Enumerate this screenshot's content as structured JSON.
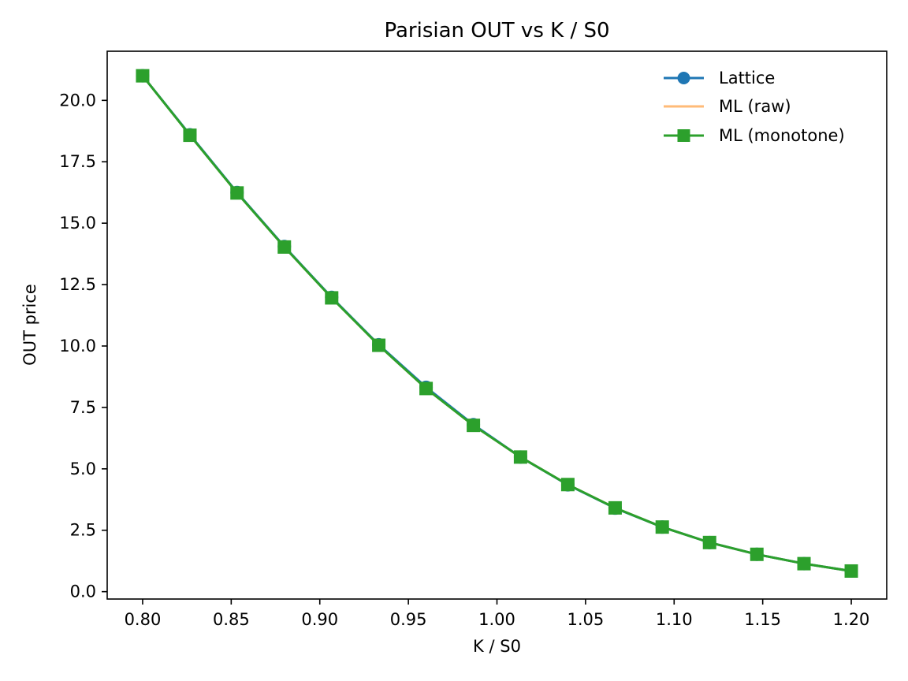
{
  "chart_data": {
    "type": "line",
    "title": "Parisian OUT vs K / S0",
    "xlabel": "K / S0",
    "ylabel": "OUT price",
    "xlim": [
      0.78,
      1.22
    ],
    "ylim": [
      -0.3,
      22.0
    ],
    "xticks": [
      0.8,
      0.85,
      0.9,
      0.95,
      1.0,
      1.05,
      1.1,
      1.15,
      1.2
    ],
    "xtick_labels": [
      "0.80",
      "0.85",
      "0.90",
      "0.95",
      "1.00",
      "1.05",
      "1.10",
      "1.15",
      "1.20"
    ],
    "yticks": [
      0.0,
      2.5,
      5.0,
      7.5,
      10.0,
      12.5,
      15.0,
      17.5,
      20.0
    ],
    "ytick_labels": [
      "0.0",
      "2.5",
      "5.0",
      "7.5",
      "10.0",
      "12.5",
      "15.0",
      "17.5",
      "20.0"
    ],
    "grid": false,
    "legend_position": "top-right",
    "x": [
      0.8,
      0.8267,
      0.8533,
      0.88,
      0.9067,
      0.9333,
      0.96,
      0.9867,
      1.0133,
      1.04,
      1.0667,
      1.0933,
      1.12,
      1.1467,
      1.1733,
      1.2
    ],
    "series": [
      {
        "name": "Lattice",
        "color": "#1f77b4",
        "marker": "circle",
        "values": [
          21.0,
          18.6,
          16.25,
          14.05,
          11.98,
          10.05,
          8.32,
          6.8,
          5.48,
          4.35,
          3.4,
          2.63,
          2.0,
          1.52,
          1.14,
          0.84
        ]
      },
      {
        "name": "ML (raw)",
        "color": "#ffbb78",
        "marker": "none",
        "values": [
          21.0,
          18.58,
          16.23,
          14.03,
          11.96,
          10.03,
          8.27,
          6.77,
          5.48,
          4.36,
          3.41,
          2.63,
          2.0,
          1.52,
          1.14,
          0.84
        ]
      },
      {
        "name": "ML (monotone)",
        "color": "#2ca02c",
        "marker": "square",
        "values": [
          21.0,
          18.58,
          16.23,
          14.03,
          11.96,
          10.03,
          8.27,
          6.77,
          5.48,
          4.36,
          3.41,
          2.63,
          2.0,
          1.52,
          1.14,
          0.84
        ]
      }
    ]
  }
}
